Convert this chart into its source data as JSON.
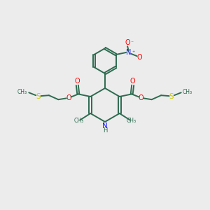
{
  "bg_color": "#ececec",
  "bond_color": "#2d6b50",
  "n_color": "#1414ff",
  "o_color": "#ff0000",
  "s_color": "#cccc00",
  "font_size": 7.0,
  "linewidth": 1.4,
  "fig_w": 3.0,
  "fig_h": 3.0,
  "dpi": 100,
  "xlim": [
    0,
    10
  ],
  "ylim": [
    0,
    10
  ]
}
